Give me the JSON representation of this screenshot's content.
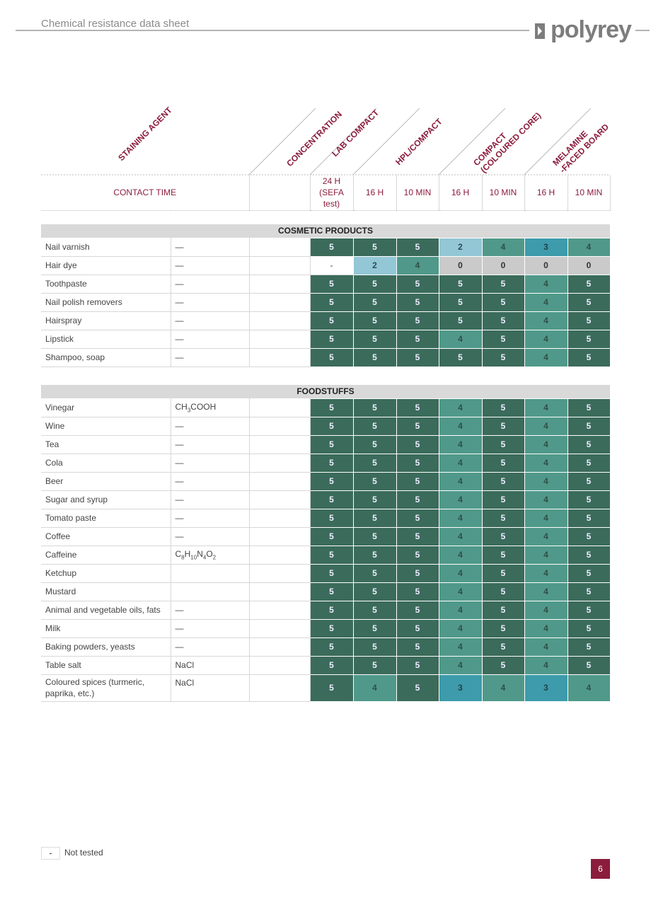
{
  "header": {
    "title": "Chemical resistance data sheet",
    "logo": "polyrey"
  },
  "columns": {
    "staining_agent": "STAINING AGENT",
    "concentration": "CONCENTRATION",
    "groups": [
      [
        "LAB COMPACT"
      ],
      [
        "HPL/COMPACT"
      ],
      [
        "COMPACT",
        "(COLOURED CORE)"
      ],
      [
        "MELAMINE",
        "-FACED BOARD"
      ]
    ]
  },
  "contact_time": {
    "label": "CONTACT TIME",
    "times": [
      [
        "24 H",
        "(SEFA",
        "test)"
      ],
      [
        "16 H"
      ],
      [
        "10 MIN"
      ],
      [
        "16 H"
      ],
      [
        "10 MIN"
      ],
      [
        "16 H"
      ],
      [
        "10 MIN"
      ]
    ]
  },
  "sections": [
    {
      "title": "COSMETIC PRODUCTS",
      "rows": [
        {
          "name": "Nail varnish",
          "concentration": [
            "—"
          ],
          "ratings": [
            "5",
            "5",
            "5",
            "2",
            "4",
            "3",
            "4"
          ]
        },
        {
          "name": "Hair dye",
          "concentration": [
            "—"
          ],
          "ratings": [
            "-",
            "2",
            "4",
            "0",
            "0",
            "0",
            "0"
          ]
        },
        {
          "name": "Toothpaste",
          "concentration": [
            "—"
          ],
          "ratings": [
            "5",
            "5",
            "5",
            "5",
            "5",
            "4",
            "5"
          ]
        },
        {
          "name": "Nail polish removers",
          "concentration": [
            "—"
          ],
          "ratings": [
            "5",
            "5",
            "5",
            "5",
            "5",
            "4",
            "5"
          ]
        },
        {
          "name": "Hairspray",
          "concentration": [
            "—"
          ],
          "ratings": [
            "5",
            "5",
            "5",
            "5",
            "5",
            "4",
            "5"
          ]
        },
        {
          "name": "Lipstick",
          "concentration": [
            "—"
          ],
          "ratings": [
            "5",
            "5",
            "5",
            "4",
            "5",
            "4",
            "5"
          ]
        },
        {
          "name": "Shampoo, soap",
          "concentration": [
            "—"
          ],
          "ratings": [
            "5",
            "5",
            "5",
            "5",
            "5",
            "4",
            "5"
          ]
        }
      ]
    },
    {
      "title": "FOODSTUFFS",
      "rows": [
        {
          "name": "Vinegar",
          "concentration": [
            "CH",
            "3",
            "COOH"
          ],
          "ratings": [
            "5",
            "5",
            "5",
            "4",
            "5",
            "4",
            "5"
          ]
        },
        {
          "name": "Wine",
          "concentration": [
            "—"
          ],
          "ratings": [
            "5",
            "5",
            "5",
            "4",
            "5",
            "4",
            "5"
          ]
        },
        {
          "name": "Tea",
          "concentration": [
            "—"
          ],
          "ratings": [
            "5",
            "5",
            "5",
            "4",
            "5",
            "4",
            "5"
          ]
        },
        {
          "name": "Cola",
          "concentration": [
            "—"
          ],
          "ratings": [
            "5",
            "5",
            "5",
            "4",
            "5",
            "4",
            "5"
          ]
        },
        {
          "name": "Beer",
          "concentration": [
            "—"
          ],
          "ratings": [
            "5",
            "5",
            "5",
            "4",
            "5",
            "4",
            "5"
          ]
        },
        {
          "name": "Sugar and syrup",
          "concentration": [
            "—"
          ],
          "ratings": [
            "5",
            "5",
            "5",
            "4",
            "5",
            "4",
            "5"
          ]
        },
        {
          "name": "Tomato paste",
          "concentration": [
            "—"
          ],
          "ratings": [
            "5",
            "5",
            "5",
            "4",
            "5",
            "4",
            "5"
          ]
        },
        {
          "name": "Coffee",
          "concentration": [
            "—"
          ],
          "ratings": [
            "5",
            "5",
            "5",
            "4",
            "5",
            "4",
            "5"
          ]
        },
        {
          "name": "Caffeine",
          "concentration": [
            "C",
            "8",
            "H",
            "10",
            "N",
            "4",
            "O",
            "2"
          ],
          "ratings": [
            "5",
            "5",
            "5",
            "4",
            "5",
            "4",
            "5"
          ]
        },
        {
          "name": "Ketchup",
          "concentration": null,
          "ratings": [
            "5",
            "5",
            "5",
            "4",
            "5",
            "4",
            "5"
          ]
        },
        {
          "name": "Mustard",
          "concentration": null,
          "ratings": [
            "5",
            "5",
            "5",
            "4",
            "5",
            "4",
            "5"
          ]
        },
        {
          "name": "Animal and vegetable oils, fats",
          "concentration": [
            "—"
          ],
          "ratings": [
            "5",
            "5",
            "5",
            "4",
            "5",
            "4",
            "5"
          ]
        },
        {
          "name": "Milk",
          "concentration": [
            "—"
          ],
          "ratings": [
            "5",
            "5",
            "5",
            "4",
            "5",
            "4",
            "5"
          ]
        },
        {
          "name": "Baking powders, yeasts",
          "concentration": [
            "—"
          ],
          "ratings": [
            "5",
            "5",
            "5",
            "4",
            "5",
            "4",
            "5"
          ]
        },
        {
          "name": "Table salt",
          "concentration": [
            "NaCl"
          ],
          "ratings": [
            "5",
            "5",
            "5",
            "4",
            "5",
            "4",
            "5"
          ]
        },
        {
          "name": "Coloured spices (turmeric, paprika, etc.)",
          "concentration": [
            "NaCl"
          ],
          "ratings": [
            "5",
            "4",
            "5",
            "3",
            "4",
            "3",
            "4"
          ]
        }
      ]
    }
  ],
  "legend": {
    "symbol": "-",
    "text": "Not tested"
  },
  "page_number": "6"
}
